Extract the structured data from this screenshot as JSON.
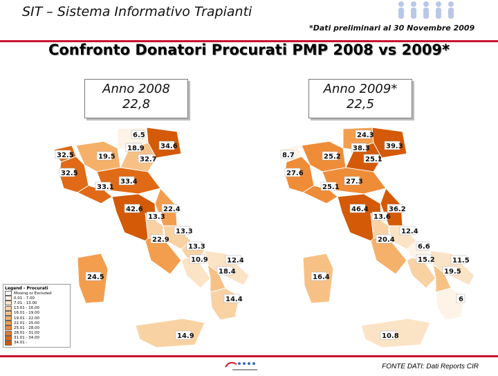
{
  "header": {
    "title": "SIT – Sistema Informativo Trapianti",
    "note": "*Dati preliminari al 30 Novembre 2009"
  },
  "page_title": "Confronto Donatori Procurati PMP 2008 vs 2009*",
  "map_2008": {
    "year_label": "Anno 2008",
    "national_value": "22,8",
    "regions": [
      {
        "name": "Valle d'Aosta",
        "value": "32.5"
      },
      {
        "name": "Piemonte",
        "value": "32.5"
      },
      {
        "name": "Lombardia",
        "value": "19.5"
      },
      {
        "name": "Trentino-Alto Adige",
        "value": "6.5"
      },
      {
        "name": "Veneto",
        "value": "18.9"
      },
      {
        "name": "Friuli-Venezia Giulia",
        "value": "34.6"
      },
      {
        "name": "Emilia-Romagna",
        "value": "32.7"
      },
      {
        "name": "Liguria",
        "value": "33.1"
      },
      {
        "name": "Emilia-Romagna east",
        "value": "33.4"
      },
      {
        "name": "Toscana",
        "value": "42.6"
      },
      {
        "name": "Marche",
        "value": "22.4"
      },
      {
        "name": "Umbria",
        "value": "13.3"
      },
      {
        "name": "Abruzzo",
        "value": "13.3"
      },
      {
        "name": "Lazio",
        "value": "22.9"
      },
      {
        "name": "Molise",
        "value": "13.3"
      },
      {
        "name": "Campania",
        "value": "10.9"
      },
      {
        "name": "Puglia",
        "value": "12.4"
      },
      {
        "name": "Basilicata",
        "value": "18.4"
      },
      {
        "name": "Calabria",
        "value": "14.4"
      },
      {
        "name": "Sardegna",
        "value": "24.5"
      },
      {
        "name": "Sicilia",
        "value": "14.9"
      }
    ]
  },
  "map_2009": {
    "year_label": "Anno 2009*",
    "national_value": "22,5",
    "regions": [
      {
        "name": "Valle d'Aosta",
        "value": "8.7"
      },
      {
        "name": "Piemonte",
        "value": "27.6"
      },
      {
        "name": "Lombardia",
        "value": "25.2"
      },
      {
        "name": "Trentino-Alto Adige",
        "value": "24.3"
      },
      {
        "name": "Veneto",
        "value": "38.3"
      },
      {
        "name": "Friuli-Venezia Giulia",
        "value": "39.3"
      },
      {
        "name": "Emilia-Romagna",
        "value": "25.1"
      },
      {
        "name": "Liguria",
        "value": "25.1"
      },
      {
        "name": "Emilia-Romagna east",
        "value": "27.3"
      },
      {
        "name": "Toscana",
        "value": "46.4"
      },
      {
        "name": "Marche",
        "value": "36.2"
      },
      {
        "name": "Umbria",
        "value": "13.6"
      },
      {
        "name": "Abruzzo",
        "value": "12.4"
      },
      {
        "name": "Lazio",
        "value": "20.4"
      },
      {
        "name": "Molise",
        "value": "6.6"
      },
      {
        "name": "Campania",
        "value": "15.2"
      },
      {
        "name": "Puglia",
        "value": "11.5"
      },
      {
        "name": "Basilicata",
        "value": "19.5"
      },
      {
        "name": "Calabria",
        "value": "6"
      },
      {
        "name": "Sardegna",
        "value": "16.4"
      },
      {
        "name": "Sicilia",
        "value": "10.8"
      }
    ]
  },
  "legend": {
    "title": "Legend - Procurati",
    "items": [
      {
        "label": "Missing or Excluded",
        "color": "#ffffff"
      },
      {
        "label": "0.01 - 7.00",
        "color": "#fdf3e7"
      },
      {
        "label": "7.01 - 13.00",
        "color": "#fbe3c6"
      },
      {
        "label": "13.01 - 16.00",
        "color": "#f9d2a4"
      },
      {
        "label": "16.01 - 19.00",
        "color": "#f7c186"
      },
      {
        "label": "19.01 - 22.00",
        "color": "#f5b06a"
      },
      {
        "label": "22.01 - 25.00",
        "color": "#f39e4f"
      },
      {
        "label": "25.01 - 28.00",
        "color": "#ef8c38"
      },
      {
        "label": "28.01 - 31.00",
        "color": "#e97a25"
      },
      {
        "label": "31.01 - 34.00",
        "color": "#e06a15"
      },
      {
        "label": "34.01 -",
        "color": "#d45a08"
      }
    ]
  },
  "footer": {
    "source": "FONTE DATI: Dati Reports CIR"
  },
  "colors": {
    "accent": "#c8102e"
  }
}
